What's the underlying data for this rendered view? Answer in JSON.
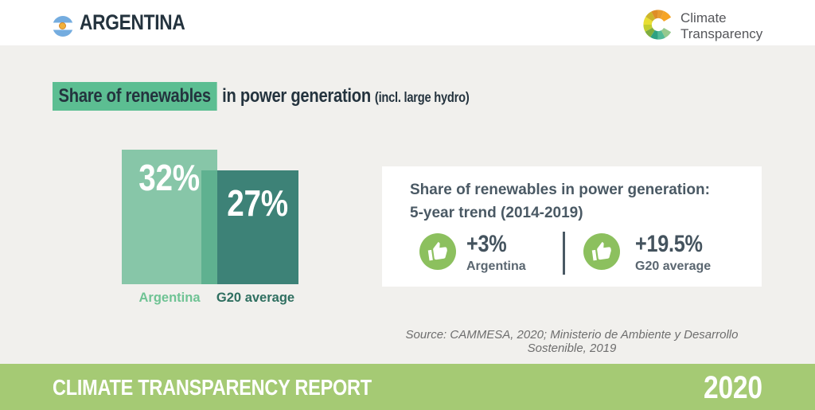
{
  "header": {
    "country": "ARGENTINA",
    "logo": {
      "line1": "Climate",
      "line2": "Transparency"
    }
  },
  "title": {
    "highlight": "Share of renewables",
    "rest": "in power generation",
    "suffix": "(incl. large hydro)"
  },
  "chart_data": {
    "type": "bar",
    "title": "Share of renewables in power generation (incl. large hydro)",
    "unit": "%",
    "categories": [
      "Argentina",
      "G20 average"
    ],
    "values": [
      32,
      27
    ],
    "value_labels": [
      "32%",
      "27%"
    ],
    "bar_colors": [
      "#87C6A8",
      "#3D8277"
    ],
    "overlap_color": "#5FB190",
    "category_label_colors": [
      "#6FC394",
      "#2F6F60"
    ],
    "ylim": [
      0,
      32
    ]
  },
  "trend_box": {
    "title_line1": "Share of renewables in power generation:",
    "title_line2": "5-year trend (2014-2019)",
    "items": [
      {
        "icon": "thumbs-up",
        "value": "+3%",
        "label": "Argentina"
      },
      {
        "icon": "thumbs-up",
        "value": "+19.5%",
        "label": "G20 average"
      }
    ]
  },
  "source": "Source: CAMMESA, 2020; Ministerio de Ambiente y Desarrollo Sostenible, 2019",
  "footer": {
    "report": "CLIMATE TRANSPARENCY REPORT",
    "year": "2020"
  },
  "colors": {
    "background": "#F1F0ED",
    "header_background": "#FFFFFF",
    "title_highlight": "#5CBE92",
    "dark_text": "#24333E",
    "trend_text": "#4A5964",
    "thumb_circle_green": "#8CC05E",
    "footer_green": "#A5CA74",
    "flag_blue": "#74ACDF",
    "flag_sun": "#F2B13A"
  }
}
